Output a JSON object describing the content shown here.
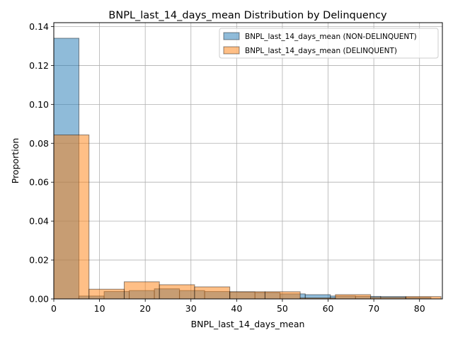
{
  "chart_data": {
    "type": "bar",
    "title": "BNPL_last_14_days_mean Distribution by Delinquency",
    "xlabel": "BNPL_last_14_days_mean",
    "ylabel": "Proportion",
    "xlim": [
      0,
      85
    ],
    "ylim": [
      0,
      0.142
    ],
    "xticks": [
      0,
      10,
      20,
      30,
      40,
      50,
      60,
      70,
      80
    ],
    "xtick_labels": [
      "0",
      "10",
      "20",
      "30",
      "40",
      "50",
      "60",
      "70",
      "80"
    ],
    "yticks": [
      0.0,
      0.02,
      0.04,
      0.06,
      0.08,
      0.1,
      0.12,
      0.14
    ],
    "ytick_labels": [
      "0.00",
      "0.02",
      "0.04",
      "0.06",
      "0.08",
      "0.10",
      "0.12",
      "0.14"
    ],
    "grid": true,
    "legend_position": "top-right",
    "series": [
      {
        "name": "BNPL_last_14_days_mean (NON-DELINQUENT)",
        "color": "#1f77b4",
        "bin_edges": [
          0,
          5.5,
          11,
          16.5,
          22,
          27.5,
          33,
          38.5,
          44,
          49.5,
          55,
          60.5,
          66,
          71.5,
          77,
          82.5
        ],
        "values": [
          0.134,
          0.0015,
          0.0038,
          0.0043,
          0.0052,
          0.0043,
          0.0038,
          0.0036,
          0.0033,
          0.0026,
          0.0022,
          0.0015,
          0.0013,
          0.0012,
          0.0008
        ]
      },
      {
        "name": "BNPL_last_14_days_mean (DELINQUENT)",
        "color": "#ff7f0e",
        "bin_edges": [
          0,
          7.7,
          15.4,
          23.1,
          30.8,
          38.5,
          46.2,
          53.9,
          61.6,
          69.3,
          77,
          84.7
        ],
        "values": [
          0.0843,
          0.005,
          0.0088,
          0.0073,
          0.0062,
          0.0037,
          0.0037,
          0.0005,
          0.0022,
          0.0008,
          0.0012
        ]
      }
    ]
  }
}
